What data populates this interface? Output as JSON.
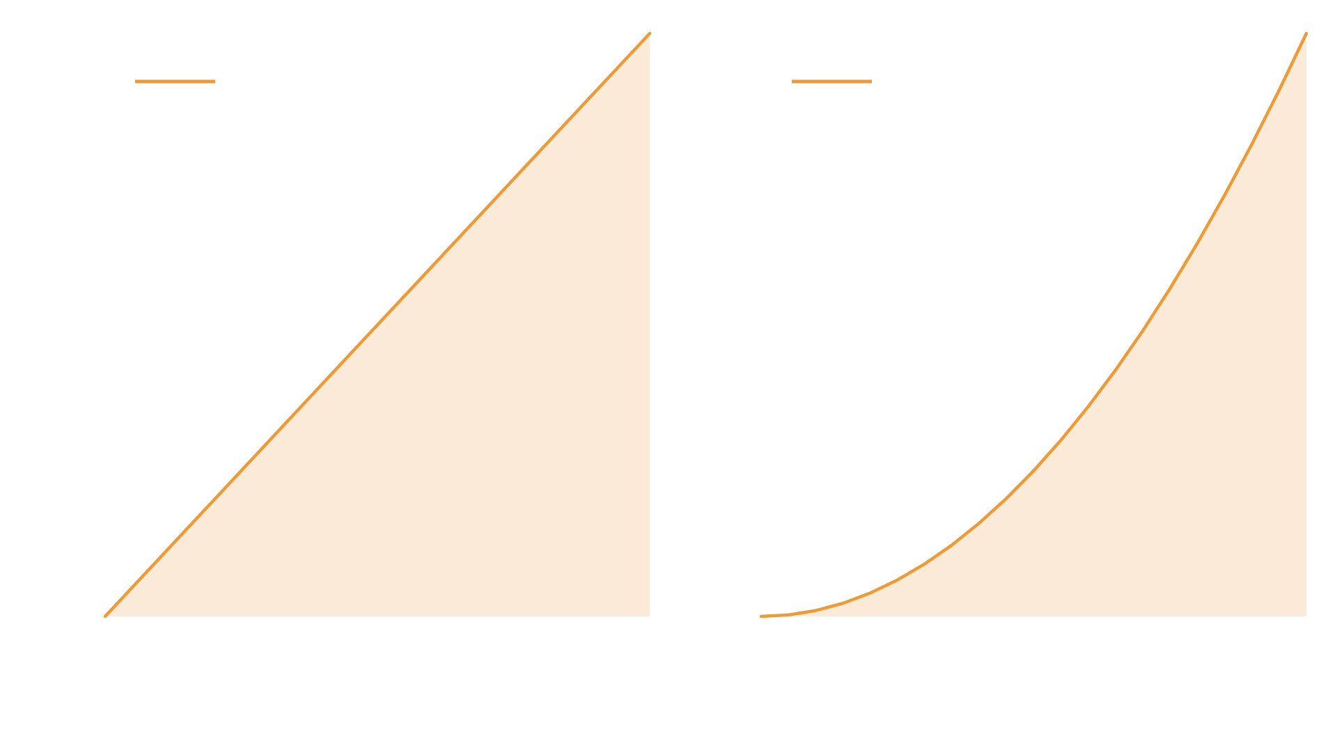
{
  "chart_data": [
    {
      "type": "area",
      "x": [
        0,
        0.1,
        0.2,
        0.3,
        0.4,
        0.5,
        0.6,
        0.7,
        0.8,
        0.9,
        1.0
      ],
      "series": [
        {
          "values": [
            0,
            0.1,
            0.2,
            0.3,
            0.4,
            0.5,
            0.6,
            0.7,
            0.8,
            0.9,
            1.0
          ],
          "color": "#EE9A37",
          "fill": "#FAEAD7"
        }
      ],
      "xlim": [
        0,
        1
      ],
      "ylim": [
        0,
        1
      ],
      "grid": false,
      "axes_visible": false,
      "legend": "top-left"
    },
    {
      "type": "area",
      "x": [
        0,
        0.05,
        0.1,
        0.15,
        0.2,
        0.25,
        0.3,
        0.35,
        0.4,
        0.45,
        0.5,
        0.55,
        0.6,
        0.65,
        0.7,
        0.75,
        0.8,
        0.85,
        0.9,
        0.95,
        1.0
      ],
      "series": [
        {
          "values": [
            0,
            0.0025,
            0.01,
            0.0225,
            0.04,
            0.0625,
            0.09,
            0.1225,
            0.16,
            0.2025,
            0.25,
            0.3025,
            0.36,
            0.4225,
            0.49,
            0.5625,
            0.64,
            0.7225,
            0.81,
            0.9025,
            1.0
          ],
          "color": "#EE9A37",
          "fill": "#FAEAD7"
        }
      ],
      "xlim": [
        0,
        1
      ],
      "ylim": [
        0,
        1
      ],
      "grid": false,
      "axes_visible": false,
      "legend": "top-left"
    }
  ]
}
